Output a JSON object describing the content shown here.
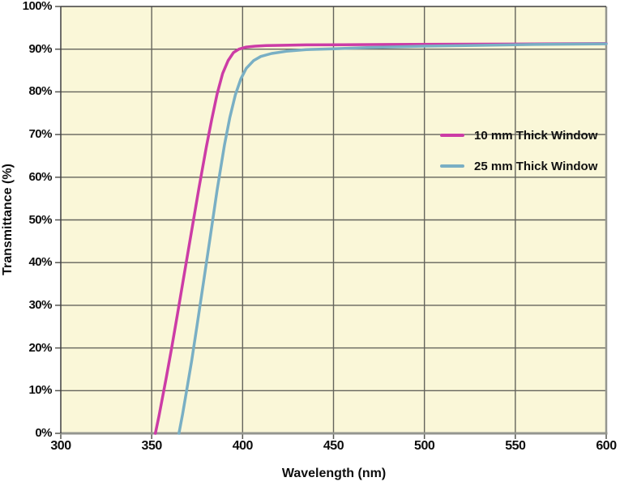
{
  "chart_data": {
    "type": "line",
    "title": "",
    "xlabel": "Wavelength (nm)",
    "ylabel": "Transmittance (%)",
    "xlim": [
      300,
      600
    ],
    "ylim": [
      0,
      100
    ],
    "xticks": [
      300,
      350,
      400,
      450,
      500,
      550,
      600
    ],
    "xtick_labels": [
      "300",
      "350",
      "400",
      "450",
      "500",
      "550",
      "600"
    ],
    "yticks": [
      0,
      10,
      20,
      30,
      40,
      50,
      60,
      70,
      80,
      90,
      100
    ],
    "ytick_labels": [
      "0%",
      "10%",
      "20%",
      "30%",
      "40%",
      "50%",
      "60%",
      "70%",
      "80%",
      "90%",
      "100%"
    ],
    "grid": true,
    "legend_position": "inside-right",
    "colors": {
      "plot_bg": "#FAF7D8",
      "grid": "#64645C",
      "axis_dark": "#3F3F3F",
      "axis_gray": "#94968F",
      "tick": "#555550",
      "text": "#0D0D0D"
    },
    "series": [
      {
        "name": "10 mm Thick Window",
        "color": "#CC3CA6",
        "x": [
          352,
          354,
          356,
          358,
          361,
          364,
          368,
          372,
          376,
          380,
          383,
          386,
          389,
          392,
          395,
          398,
          402,
          407,
          413,
          420,
          435,
          455,
          480,
          510,
          550,
          600
        ],
        "y": [
          0,
          4,
          8.5,
          13,
          20,
          27.5,
          37.5,
          47.5,
          57.5,
          67,
          73.5,
          79.5,
          84.3,
          87.3,
          89.2,
          90.0,
          90.5,
          90.7,
          90.85,
          90.9,
          91.0,
          91.05,
          91.1,
          91.15,
          91.2,
          91.3
        ]
      },
      {
        "name": "25 mm Thick Window",
        "color": "#79AFC4",
        "x": [
          365,
          367,
          369,
          372,
          375,
          378,
          382,
          386,
          390,
          393,
          396,
          399,
          402,
          406,
          410,
          416,
          424,
          435,
          450,
          470,
          500,
          530,
          560,
          600
        ],
        "y": [
          0,
          4.5,
          9.5,
          17,
          25.5,
          34,
          45.5,
          57,
          67.5,
          74,
          79.3,
          83,
          85.5,
          87.3,
          88.3,
          89.0,
          89.5,
          89.9,
          90.1,
          90.4,
          90.7,
          90.9,
          91.1,
          91.25
        ]
      }
    ]
  }
}
